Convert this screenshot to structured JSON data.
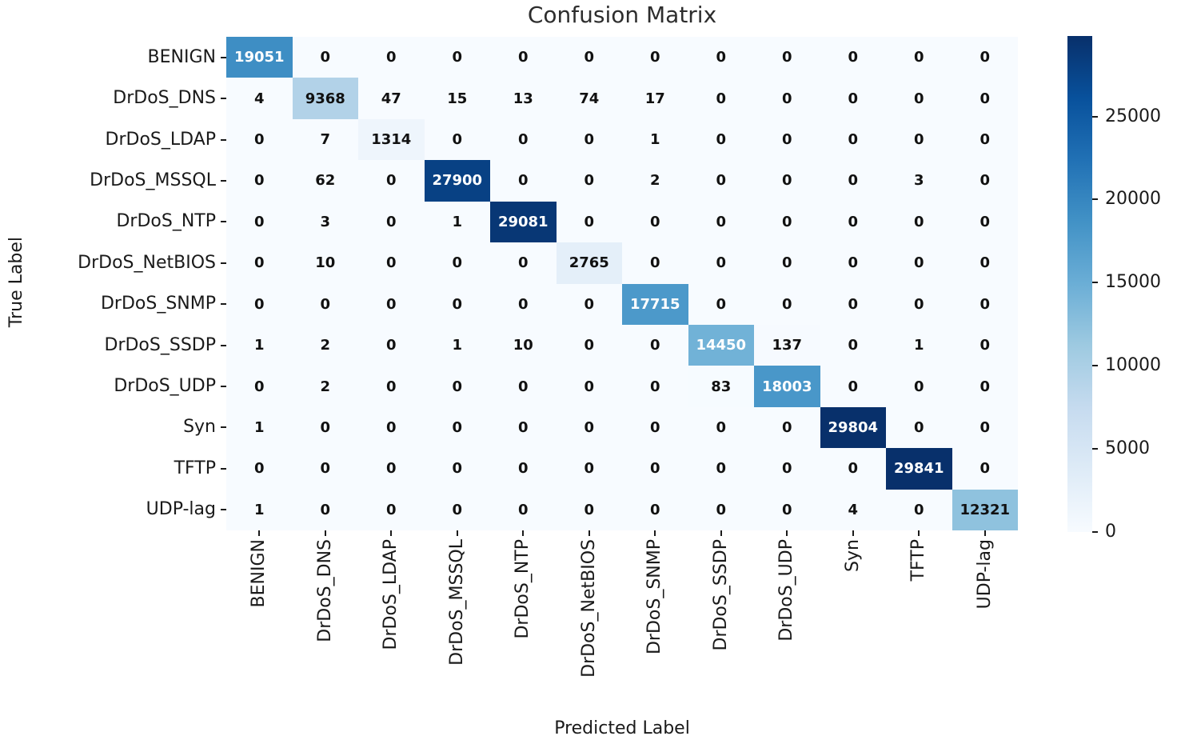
{
  "title": "Confusion Matrix",
  "chart_data": {
    "type": "heatmap",
    "title": "Confusion Matrix",
    "xlabel": "Predicted Label",
    "ylabel": "True Label",
    "categories": [
      "BENIGN",
      "DrDoS_DNS",
      "DrDoS_LDAP",
      "DrDoS_MSSQL",
      "DrDoS_NTP",
      "DrDoS_NetBIOS",
      "DrDoS_SNMP",
      "DrDoS_SSDP",
      "DrDoS_UDP",
      "Syn",
      "TFTP",
      "UDP-lag"
    ],
    "x_categories": [
      "BENIGN",
      "DrDoS_DNS",
      "DrDoS_LDAP",
      "DrDoS_MSSQL",
      "DrDoS_NTP",
      "DrDoS_NetBIOS",
      "DrDoS_SNMP",
      "DrDoS_SSDP",
      "DrDoS_UDP",
      "Syn",
      "TFTP",
      "UDP-lag"
    ],
    "matrix": [
      [
        19051,
        0,
        0,
        0,
        0,
        0,
        0,
        0,
        0,
        0,
        0,
        0
      ],
      [
        4,
        9368,
        47,
        15,
        13,
        74,
        17,
        0,
        0,
        0,
        0,
        0
      ],
      [
        0,
        7,
        1314,
        0,
        0,
        0,
        1,
        0,
        0,
        0,
        0,
        0
      ],
      [
        0,
        62,
        0,
        27900,
        0,
        0,
        2,
        0,
        0,
        0,
        3,
        0
      ],
      [
        0,
        3,
        0,
        1,
        29081,
        0,
        0,
        0,
        0,
        0,
        0,
        0
      ],
      [
        0,
        10,
        0,
        0,
        0,
        2765,
        0,
        0,
        0,
        0,
        0,
        0
      ],
      [
        0,
        0,
        0,
        0,
        0,
        0,
        17715,
        0,
        0,
        0,
        0,
        0
      ],
      [
        1,
        2,
        0,
        1,
        10,
        0,
        0,
        14450,
        137,
        0,
        1,
        0
      ],
      [
        0,
        2,
        0,
        0,
        0,
        0,
        0,
        83,
        18003,
        0,
        0,
        0
      ],
      [
        1,
        0,
        0,
        0,
        0,
        0,
        0,
        0,
        0,
        29804,
        0,
        0
      ],
      [
        0,
        0,
        0,
        0,
        0,
        0,
        0,
        0,
        0,
        0,
        29841,
        0
      ],
      [
        1,
        0,
        0,
        0,
        0,
        0,
        0,
        0,
        0,
        4,
        0,
        12321
      ]
    ],
    "colorbar": {
      "vmin": 0,
      "vmax": 29841,
      "ticks": [
        0,
        5000,
        10000,
        15000,
        20000,
        25000
      ]
    },
    "colormap": {
      "name": "Blues",
      "stops": [
        "#f7fbff",
        "#deebf7",
        "#c6dbef",
        "#9ecae1",
        "#6baed6",
        "#4292c6",
        "#2171b5",
        "#08519c",
        "#08306b"
      ]
    },
    "annotation_colors": {
      "light": "#ffffff",
      "dark": "#111111"
    },
    "tick_color": "#1a1a1a",
    "background": "#ffffff",
    "legend_position": "right-colorbar",
    "grid": false
  }
}
